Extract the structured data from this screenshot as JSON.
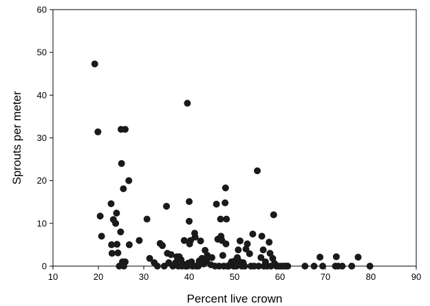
{
  "chart_data": {
    "type": "scatter",
    "xlabel": "Percent live crown",
    "ylabel": "Sprouts per meter",
    "xlim": [
      10,
      90
    ],
    "ylim": [
      0,
      60
    ],
    "xticks": [
      10,
      20,
      30,
      40,
      50,
      60,
      70,
      80,
      90
    ],
    "yticks": [
      0,
      10,
      20,
      30,
      40,
      50,
      60
    ],
    "grid": false,
    "legend": "none",
    "marker_color": "#1a1a1a",
    "points": [
      [
        19.2,
        47.3
      ],
      [
        19.9,
        31.4
      ],
      [
        20.4,
        11.7
      ],
      [
        20.7,
        7.0
      ],
      [
        22.8,
        14.6
      ],
      [
        22.9,
        5.0
      ],
      [
        23.0,
        3.0
      ],
      [
        23.3,
        10.9
      ],
      [
        23.8,
        10.0
      ],
      [
        24.0,
        12.4
      ],
      [
        24.1,
        5.1
      ],
      [
        24.3,
        3.1
      ],
      [
        24.6,
        0.0
      ],
      [
        24.9,
        8.0
      ],
      [
        25.0,
        32.0
      ],
      [
        25.1,
        24.0
      ],
      [
        25.3,
        1.0
      ],
      [
        25.5,
        18.1
      ],
      [
        25.6,
        0.0
      ],
      [
        25.9,
        32.0
      ],
      [
        25.9,
        1.0
      ],
      [
        26.7,
        20.0
      ],
      [
        26.8,
        5.0
      ],
      [
        29.0,
        6.0
      ],
      [
        30.7,
        11.0
      ],
      [
        31.3,
        1.8
      ],
      [
        32.3,
        0.8
      ],
      [
        33.0,
        0.0
      ],
      [
        33.6,
        5.3
      ],
      [
        34.1,
        4.8
      ],
      [
        34.5,
        0.0
      ],
      [
        35.0,
        14.0
      ],
      [
        35.2,
        3.0
      ],
      [
        35.5,
        0.8
      ],
      [
        36.0,
        2.7
      ],
      [
        36.4,
        0.0
      ],
      [
        37.0,
        0.8
      ],
      [
        37.3,
        2.2
      ],
      [
        37.6,
        0.0
      ],
      [
        37.8,
        2.2
      ],
      [
        38.2,
        1.5
      ],
      [
        38.4,
        0.0
      ],
      [
        38.6,
        0.5
      ],
      [
        38.9,
        6.0
      ],
      [
        39.2,
        0.0
      ],
      [
        39.5,
        0.0
      ],
      [
        39.6,
        38.1
      ],
      [
        39.8,
        0.7
      ],
      [
        40.0,
        15.1
      ],
      [
        40.0,
        10.5
      ],
      [
        40.1,
        5.2
      ],
      [
        40.3,
        6.0
      ],
      [
        40.5,
        1.0
      ],
      [
        40.7,
        0.0
      ],
      [
        41.2,
        7.7
      ],
      [
        41.3,
        6.8
      ],
      [
        41.5,
        0.0
      ],
      [
        42.0,
        0.0
      ],
      [
        42.2,
        1.2
      ],
      [
        42.5,
        5.9
      ],
      [
        42.8,
        1.8
      ],
      [
        43.2,
        0.5
      ],
      [
        43.5,
        3.7
      ],
      [
        43.8,
        1.0
      ],
      [
        44.0,
        2.5
      ],
      [
        44.3,
        2.0
      ],
      [
        44.8,
        0.3
      ],
      [
        45.0,
        2.0
      ],
      [
        45.7,
        0.0
      ],
      [
        46.0,
        14.5
      ],
      [
        46.3,
        6.3
      ],
      [
        46.6,
        0.0
      ],
      [
        46.9,
        11.0
      ],
      [
        47.0,
        7.0
      ],
      [
        47.2,
        6.0
      ],
      [
        47.4,
        2.5
      ],
      [
        47.6,
        0.0
      ],
      [
        47.9,
        14.8
      ],
      [
        48.0,
        18.3
      ],
      [
        48.1,
        5.2
      ],
      [
        48.2,
        11.0
      ],
      [
        48.4,
        0.0
      ],
      [
        48.7,
        0.0
      ],
      [
        49.0,
        0.3
      ],
      [
        49.3,
        1.0
      ],
      [
        49.5,
        0.6
      ],
      [
        49.8,
        0.0
      ],
      [
        50.0,
        1.2
      ],
      [
        50.2,
        0.4
      ],
      [
        50.4,
        0.0
      ],
      [
        50.6,
        2.0
      ],
      [
        50.8,
        3.8
      ],
      [
        51.0,
        1.1
      ],
      [
        51.2,
        5.9
      ],
      [
        51.4,
        0.4
      ],
      [
        51.6,
        0.0
      ],
      [
        51.9,
        0.8
      ],
      [
        52.2,
        0.0
      ],
      [
        52.5,
        4.0
      ],
      [
        52.8,
        5.2
      ],
      [
        53.3,
        2.9
      ],
      [
        53.6,
        0.0
      ],
      [
        54.0,
        7.5
      ],
      [
        54.3,
        0.0
      ],
      [
        55.0,
        22.3
      ],
      [
        55.3,
        0.0
      ],
      [
        55.8,
        2.0
      ],
      [
        56.0,
        7.0
      ],
      [
        56.3,
        3.8
      ],
      [
        56.5,
        0.0
      ],
      [
        56.8,
        1.0
      ],
      [
        57.2,
        0.0
      ],
      [
        57.6,
        5.6
      ],
      [
        57.8,
        3.0
      ],
      [
        58.0,
        0.0
      ],
      [
        58.4,
        1.8
      ],
      [
        58.6,
        12.0
      ],
      [
        58.8,
        0.6
      ],
      [
        59.2,
        0.0
      ],
      [
        59.6,
        0.0
      ],
      [
        60.2,
        0.0
      ],
      [
        60.8,
        0.0
      ],
      [
        61.3,
        0.0
      ],
      [
        61.7,
        0.0
      ],
      [
        65.5,
        0.0
      ],
      [
        67.5,
        0.0
      ],
      [
        68.8,
        2.1
      ],
      [
        69.4,
        0.0
      ],
      [
        72.2,
        0.0
      ],
      [
        72.4,
        2.2
      ],
      [
        72.8,
        0.0
      ],
      [
        73.7,
        0.0
      ],
      [
        75.8,
        0.0
      ],
      [
        77.2,
        2.1
      ],
      [
        79.8,
        0.0
      ]
    ]
  }
}
